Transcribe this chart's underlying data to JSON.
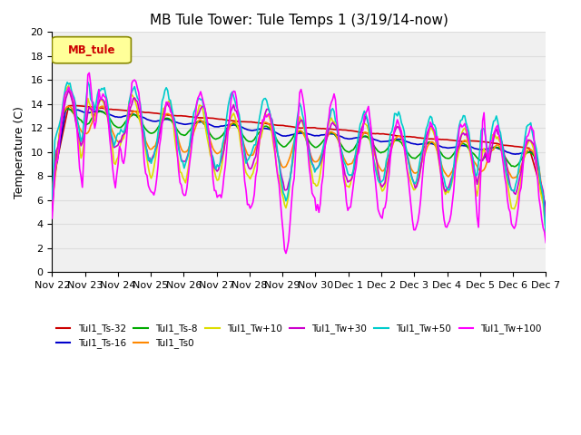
{
  "title": "MB Tule Tower: Tule Temps 1 (3/19/14-now)",
  "ylabel": "Temperature (C)",
  "xlabel": "",
  "ylim": [
    0,
    20
  ],
  "yticks": [
    0,
    2,
    4,
    6,
    8,
    10,
    12,
    14,
    16,
    18,
    20
  ],
  "x_labels": [
    "Nov 22",
    "Nov 23",
    "Nov 24",
    "Nov 25",
    "Nov 26",
    "Nov 27",
    "Nov 28",
    "Nov 29",
    "Nov 30",
    "Dec 1",
    "Dec 2",
    "Dec 3",
    "Dec 4",
    "Dec 5",
    "Dec 6",
    "Dec 7"
  ],
  "n_points": 360,
  "series": [
    {
      "name": "Tul1_Ts-32",
      "color": "#cc0000",
      "lw": 1.2
    },
    {
      "name": "Tul1_Ts-16",
      "color": "#0000cc",
      "lw": 1.2
    },
    {
      "name": "Tul1_Ts-8",
      "color": "#00aa00",
      "lw": 1.2
    },
    {
      "name": "Tul1_Ts0",
      "color": "#ff8800",
      "lw": 1.2
    },
    {
      "name": "Tul1_Tw+10",
      "color": "#dddd00",
      "lw": 1.2
    },
    {
      "name": "Tul1_Tw+30",
      "color": "#cc00cc",
      "lw": 1.2
    },
    {
      "name": "Tul1_Tw+50",
      "color": "#00cccc",
      "lw": 1.2
    },
    {
      "name": "Tul1_Tw+100",
      "color": "#ff00ff",
      "lw": 1.2
    }
  ],
  "legend_box_color": "#ffff99",
  "legend_box_label": "MB_tule",
  "legend_box_text_color": "#cc0000",
  "background_color": "#ffffff",
  "grid_color": "#dddddd",
  "title_fontsize": 11,
  "label_fontsize": 9,
  "tick_fontsize": 8
}
